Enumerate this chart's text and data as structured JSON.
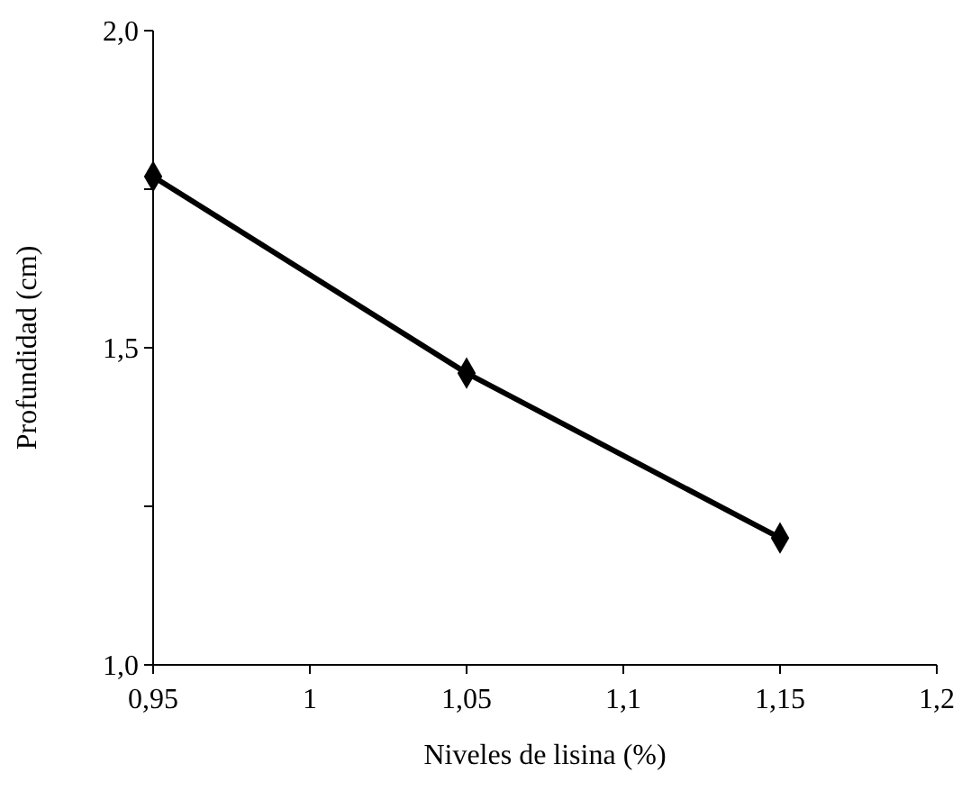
{
  "chart_data": {
    "type": "line",
    "xlabel": "Niveles de lisina (%)",
    "ylabel": "Profundidad  (cm)",
    "x": [
      0.95,
      1.05,
      1.15
    ],
    "series": [
      {
        "color": "#000000",
        "values": [
          1.77,
          1.46,
          1.2
        ]
      }
    ],
    "xlim": [
      0.95,
      1.2
    ],
    "xticks": [
      {
        "value": 0.95,
        "label": "0,95"
      },
      1,
      {
        "value": 1.05,
        "label": "1,05"
      },
      {
        "value": 1.1,
        "label": "1,1"
      },
      {
        "value": 1.15,
        "label": "1,15"
      },
      {
        "value": 1.2,
        "label": "1,2"
      }
    ],
    "ylim": [
      1.0,
      2.0
    ],
    "yticks": [
      {
        "value": 1.0,
        "label": "1,0"
      },
      {
        "value": 1.25,
        "label": null
      },
      {
        "value": 1.5,
        "label": "1,5"
      },
      {
        "value": 1.75,
        "label": null
      },
      {
        "value": 2.0,
        "label": "2,0"
      }
    ],
    "grid": false,
    "marker": "diamond",
    "line_style": "solid"
  }
}
